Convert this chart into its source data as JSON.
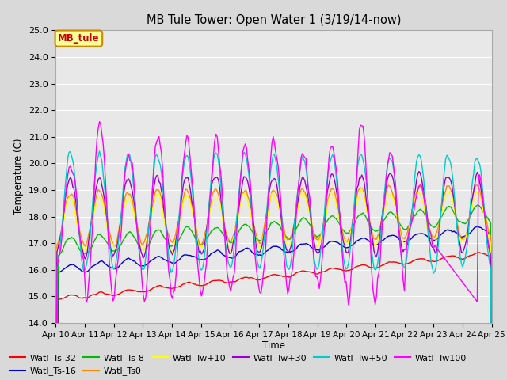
{
  "title": "MB Tule Tower: Open Water 1 (3/19/14-now)",
  "xlabel": "Time",
  "ylabel": "Temperature (C)",
  "ylim": [
    14.0,
    25.0
  ],
  "yticks": [
    14.0,
    15.0,
    16.0,
    17.0,
    18.0,
    19.0,
    20.0,
    21.0,
    22.0,
    23.0,
    24.0,
    25.0
  ],
  "bg_color": "#d9d9d9",
  "plot_bg": "#e8e8e8",
  "grid_color": "#ffffff",
  "series_colors": {
    "Watl_Ts-32": "#ff0000",
    "Watl_Ts-16": "#0000cc",
    "Watl_Ts-8": "#00bb00",
    "Watl_Ts0": "#ff8800",
    "Watl_Tw+10": "#ffff00",
    "Watl_Tw+30": "#9900cc",
    "Watl_Tw+50": "#00cccc",
    "Watl_Tw100": "#ff00ff"
  },
  "annotation_text": "MB_tule",
  "annotation_color": "#cc0000",
  "annotation_bg": "#ffff99",
  "annotation_border": "#cc8800"
}
